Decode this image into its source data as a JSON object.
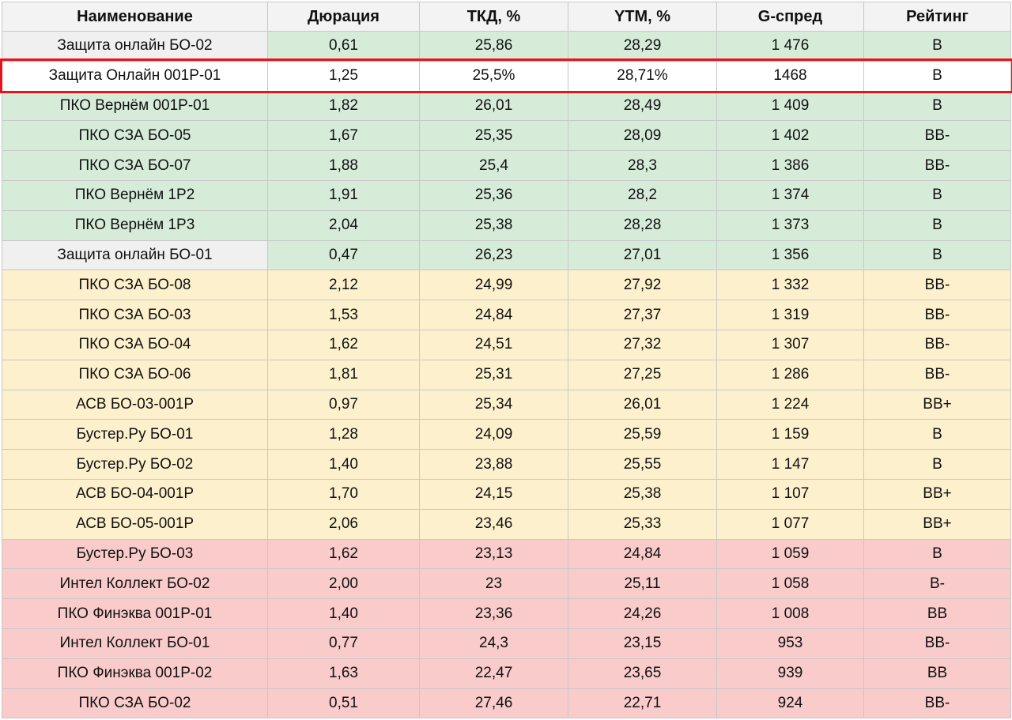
{
  "colors": {
    "green": "#d6ecd9",
    "yellow": "#fdf0cc",
    "red": "#f9cbcb",
    "gray": "#f0f0f0",
    "highlight_border": "#e8141b"
  },
  "table": {
    "headers": [
      "Наименование",
      "Дюрация",
      "ТКД, %",
      "YTM, %",
      "G-спред",
      "Рейтинг"
    ],
    "rows": [
      {
        "name": "Защита онлайн БО-02",
        "duration": "0,61",
        "tkd": "25,86",
        "ytm": "28,29",
        "gspread": "1 476",
        "rating": "B",
        "zone": "green",
        "name_zone": "gray"
      },
      {
        "name": "Защита Онлайн 001Р-01",
        "duration": "1,25",
        "tkd": "25,5%",
        "ytm": "28,71%",
        "gspread": "1468",
        "rating": "B",
        "zone": "white",
        "highlighted": true
      },
      {
        "name": "ПКО Вернём 001Р-01",
        "duration": "1,82",
        "tkd": "26,01",
        "ytm": "28,49",
        "gspread": "1 409",
        "rating": "B",
        "zone": "green"
      },
      {
        "name": "ПКО СЗА БО-05",
        "duration": "1,67",
        "tkd": "25,35",
        "ytm": "28,09",
        "gspread": "1 402",
        "rating": "BB-",
        "zone": "green"
      },
      {
        "name": "ПКО СЗА БО-07",
        "duration": "1,88",
        "tkd": "25,4",
        "ytm": "28,3",
        "gspread": "1 386",
        "rating": "BB-",
        "zone": "green"
      },
      {
        "name": "ПКО Вернём 1Р2",
        "duration": "1,91",
        "tkd": "25,36",
        "ytm": "28,2",
        "gspread": "1 374",
        "rating": "B",
        "zone": "green"
      },
      {
        "name": "ПКО Вернём 1Р3",
        "duration": "2,04",
        "tkd": "25,38",
        "ytm": "28,28",
        "gspread": "1 373",
        "rating": "B",
        "zone": "green"
      },
      {
        "name": "Защита онлайн БО-01",
        "duration": "0,47",
        "tkd": "26,23",
        "ytm": "27,01",
        "gspread": "1 356",
        "rating": "B",
        "zone": "green",
        "name_zone": "gray"
      },
      {
        "name": "ПКО СЗА БО-08",
        "duration": "2,12",
        "tkd": "24,99",
        "ytm": "27,92",
        "gspread": "1 332",
        "rating": "BB-",
        "zone": "yellow"
      },
      {
        "name": "ПКО СЗА БО-03",
        "duration": "1,53",
        "tkd": "24,84",
        "ytm": "27,37",
        "gspread": "1 319",
        "rating": "BB-",
        "zone": "yellow"
      },
      {
        "name": "ПКО СЗА БО-04",
        "duration": "1,62",
        "tkd": "24,51",
        "ytm": "27,32",
        "gspread": "1 307",
        "rating": "BB-",
        "zone": "yellow"
      },
      {
        "name": "ПКО СЗА БО-06",
        "duration": "1,81",
        "tkd": "25,31",
        "ytm": "27,25",
        "gspread": "1 286",
        "rating": "BB-",
        "zone": "yellow"
      },
      {
        "name": "АСВ БО-03-001Р",
        "duration": "0,97",
        "tkd": "25,34",
        "ytm": "26,01",
        "gspread": "1 224",
        "rating": "BB+",
        "zone": "yellow"
      },
      {
        "name": "Бустер.Ру БО-01",
        "duration": "1,28",
        "tkd": "24,09",
        "ytm": "25,59",
        "gspread": "1 159",
        "rating": "B",
        "zone": "yellow"
      },
      {
        "name": "Бустер.Ру БО-02",
        "duration": "1,40",
        "tkd": "23,88",
        "ytm": "25,55",
        "gspread": "1 147",
        "rating": "B",
        "zone": "yellow"
      },
      {
        "name": "АСВ БО-04-001Р",
        "duration": "1,70",
        "tkd": "24,15",
        "ytm": "25,38",
        "gspread": "1 107",
        "rating": "BB+",
        "zone": "yellow"
      },
      {
        "name": "АСВ БО-05-001Р",
        "duration": "2,06",
        "tkd": "23,46",
        "ytm": "25,33",
        "gspread": "1 077",
        "rating": "BB+",
        "zone": "yellow"
      },
      {
        "name": "Бустер.Ру БО-03",
        "duration": "1,62",
        "tkd": "23,13",
        "ytm": "24,84",
        "gspread": "1 059",
        "rating": "B",
        "zone": "red"
      },
      {
        "name": "Интел Коллект БО-02",
        "duration": "2,00",
        "tkd": "23",
        "ytm": "25,11",
        "gspread": "1 058",
        "rating": "B-",
        "zone": "red"
      },
      {
        "name": "ПКО Финэква 001Р-01",
        "duration": "1,40",
        "tkd": "23,36",
        "ytm": "24,26",
        "gspread": "1 008",
        "rating": "BB",
        "zone": "red"
      },
      {
        "name": "Интел Коллект БО-01",
        "duration": "0,77",
        "tkd": "24,3",
        "ytm": "23,15",
        "gspread": "953",
        "rating": "BB-",
        "zone": "red"
      },
      {
        "name": "ПКО Финэква 001Р-02",
        "duration": "1,63",
        "tkd": "22,47",
        "ytm": "23,65",
        "gspread": "939",
        "rating": "BB",
        "zone": "red"
      },
      {
        "name": "ПКО СЗА БО-02",
        "duration": "0,51",
        "tkd": "27,46",
        "ytm": "22,71",
        "gspread": "924",
        "rating": "BB-",
        "zone": "red"
      }
    ]
  }
}
